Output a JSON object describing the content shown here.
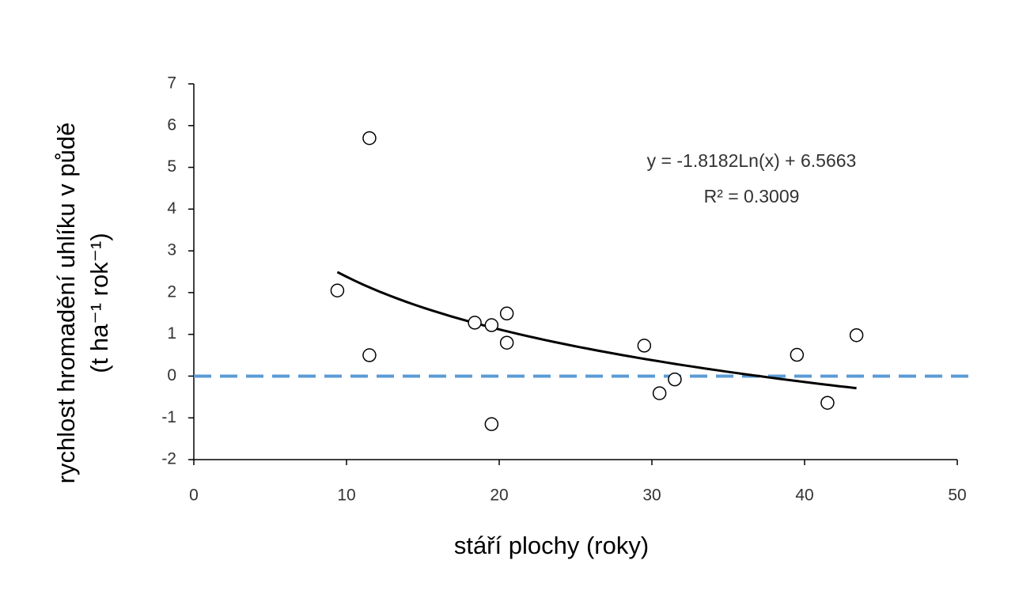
{
  "chart_data": {
    "type": "scatter",
    "x_label": "stáří plochy (roky)",
    "y_label": [
      "rychlost hromadění uhlíku v půdě",
      "(t ha⁻¹ rok⁻¹)"
    ],
    "x": [
      9.4,
      11.5,
      11.5,
      18.4,
      19.5,
      20.5,
      20.5,
      19.5,
      29.5,
      30.5,
      31.5,
      39.5,
      41.5,
      43.4
    ],
    "values": [
      2.05,
      5.7,
      0.5,
      1.28,
      1.22,
      1.5,
      0.8,
      -1.15,
      0.73,
      -0.41,
      -0.08,
      0.51,
      -0.64,
      0.98
    ],
    "marker_color": "#000000",
    "xlim": [
      0,
      50
    ],
    "xticks": [
      0,
      10,
      20,
      30,
      40,
      50
    ],
    "ylim": [
      -2,
      7
    ],
    "yticks": [
      -2,
      -1,
      0,
      1,
      2,
      3,
      4,
      5,
      6,
      7
    ],
    "trendline": {
      "a": -1.8182,
      "b": 6.5663,
      "xlim": [
        9.4,
        43.4
      ],
      "color": "#000000",
      "equation": "y = -1.8182Ln(x) + 6.5663",
      "r_squared_label": "R² = 0.3009"
    },
    "reference_line": {
      "y": 0,
      "color": "#5b9bd5"
    }
  }
}
